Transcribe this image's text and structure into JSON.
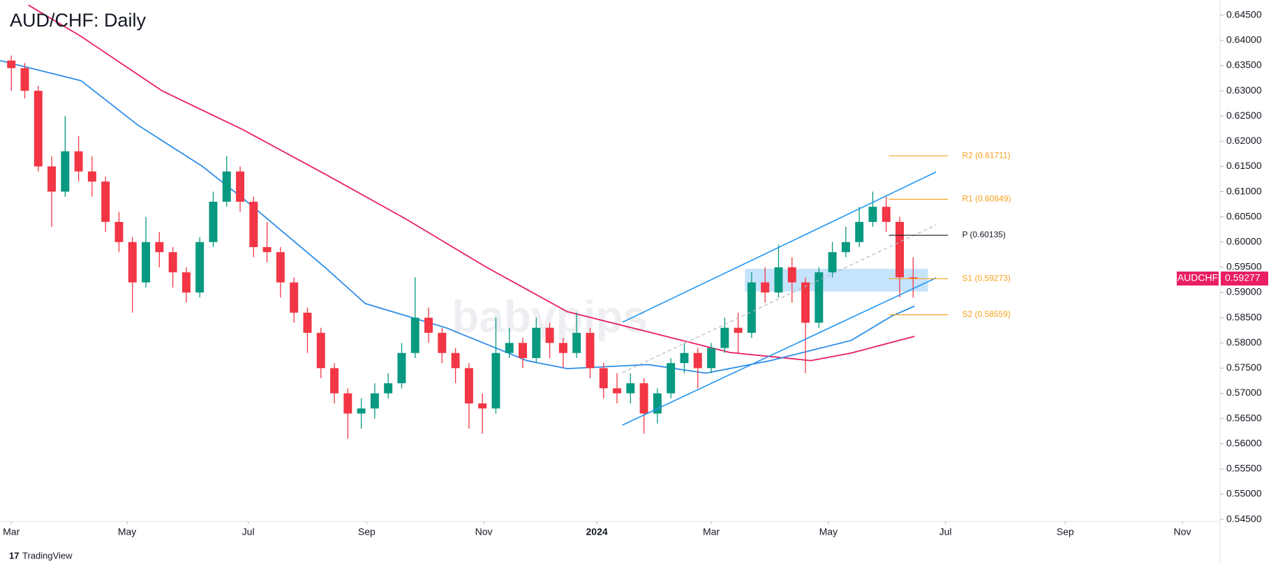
{
  "chart_data": {
    "type": "candlestick",
    "title": "AUD/CHF: Daily",
    "footer": "TradingView",
    "watermark": "babypips",
    "xlim": [
      -0.84,
      89.8
    ],
    "ylim": [
      0.5446,
      0.6469
    ],
    "xticks": [
      {
        "value": 0,
        "label": "Mar"
      },
      {
        "value": 8.6,
        "label": "May"
      },
      {
        "value": 17.6,
        "label": "Jul"
      },
      {
        "value": 26.4,
        "label": "Sep"
      },
      {
        "value": 35.1,
        "label": "Nov"
      },
      {
        "value": 43.5,
        "label": "2024"
      },
      {
        "value": 52,
        "label": "Mar"
      },
      {
        "value": 60.7,
        "label": "May"
      },
      {
        "value": 69.4,
        "label": "Jul"
      },
      {
        "value": 78.3,
        "label": "Sep"
      },
      {
        "value": 87,
        "label": "Nov"
      }
    ],
    "yticks": [
      {
        "value": 0.545,
        "label": "0.54500"
      },
      {
        "value": 0.55,
        "label": "0.55000"
      },
      {
        "value": 0.555,
        "label": "0.55500"
      },
      {
        "value": 0.56,
        "label": "0.56000"
      },
      {
        "value": 0.565,
        "label": "0.56500"
      },
      {
        "value": 0.57,
        "label": "0.57000"
      },
      {
        "value": 0.575,
        "label": "0.57500"
      },
      {
        "value": 0.58,
        "label": "0.58000"
      },
      {
        "value": 0.585,
        "label": "0.58500"
      },
      {
        "value": 0.59,
        "label": "0.59000"
      },
      {
        "value": 0.595,
        "label": "0.59500"
      },
      {
        "value": 0.6,
        "label": "0.60000"
      },
      {
        "value": 0.605,
        "label": "0.60500"
      },
      {
        "value": 0.61,
        "label": "0.61000"
      },
      {
        "value": 0.615,
        "label": "0.61500"
      },
      {
        "value": 0.62,
        "label": "0.62000"
      },
      {
        "value": 0.625,
        "label": "0.62500"
      },
      {
        "value": 0.63,
        "label": "0.63000"
      },
      {
        "value": 0.635,
        "label": "0.63500"
      },
      {
        "value": 0.64,
        "label": "0.64000"
      },
      {
        "value": 0.645,
        "label": "0.64500"
      }
    ],
    "up_color": "#089981",
    "down_color": "#f23645",
    "open": [
      0.636,
      0.6345,
      0.63,
      0.615,
      0.61,
      0.618,
      0.614,
      0.612,
      0.604,
      0.6,
      0.592,
      0.6,
      0.598,
      0.594,
      0.59,
      0.6,
      0.608,
      0.614,
      0.608,
      0.599,
      0.598,
      0.592,
      0.586,
      0.582,
      0.575,
      0.57,
      0.566,
      0.567,
      0.57,
      0.572,
      0.578,
      0.585,
      0.582,
      0.578,
      0.575,
      0.568,
      0.567,
      0.578,
      0.58,
      0.577,
      0.583,
      0.58,
      0.578,
      0.582,
      0.575,
      0.571,
      0.57,
      0.572,
      0.566,
      0.57,
      0.576,
      0.578,
      0.575,
      0.579,
      0.583,
      0.582,
      0.592,
      0.59,
      0.595,
      0.592,
      0.584,
      0.594,
      0.598,
      0.6,
      0.604,
      0.607,
      0.604,
      0.593
    ],
    "high": [
      0.637,
      0.6355,
      0.631,
      0.617,
      0.625,
      0.621,
      0.617,
      0.613,
      0.606,
      0.601,
      0.605,
      0.602,
      0.599,
      0.595,
      0.601,
      0.61,
      0.617,
      0.615,
      0.609,
      0.604,
      0.599,
      0.593,
      0.587,
      0.583,
      0.576,
      0.571,
      0.569,
      0.572,
      0.574,
      0.58,
      0.593,
      0.587,
      0.583,
      0.579,
      0.576,
      0.57,
      0.585,
      0.583,
      0.581,
      0.585,
      0.584,
      0.581,
      0.586,
      0.583,
      0.576,
      0.574,
      0.574,
      0.573,
      0.571,
      0.577,
      0.58,
      0.579,
      0.58,
      0.585,
      0.586,
      0.594,
      0.595,
      0.5995,
      0.597,
      0.593,
      0.595,
      0.6,
      0.603,
      0.607,
      0.61,
      0.609,
      0.605,
      0.597
    ],
    "low": [
      0.63,
      0.6285,
      0.614,
      0.603,
      0.609,
      0.612,
      0.609,
      0.602,
      0.598,
      0.586,
      0.591,
      0.595,
      0.591,
      0.588,
      0.589,
      0.599,
      0.607,
      0.606,
      0.597,
      0.596,
      0.589,
      0.584,
      0.578,
      0.573,
      0.568,
      0.561,
      0.563,
      0.565,
      0.569,
      0.571,
      0.577,
      0.58,
      0.576,
      0.572,
      0.563,
      0.562,
      0.566,
      0.577,
      0.575,
      0.576,
      0.577,
      0.575,
      0.577,
      0.573,
      0.569,
      0.568,
      0.568,
      0.562,
      0.564,
      0.569,
      0.574,
      0.571,
      0.574,
      0.578,
      0.578,
      0.581,
      0.588,
      0.589,
      0.588,
      0.574,
      0.583,
      0.593,
      0.597,
      0.599,
      0.603,
      0.602,
      0.589,
      0.589
    ],
    "close": [
      0.6345,
      0.63,
      0.615,
      0.61,
      0.618,
      0.614,
      0.612,
      0.604,
      0.6,
      0.592,
      0.6,
      0.598,
      0.594,
      0.59,
      0.6,
      0.608,
      0.614,
      0.608,
      0.599,
      0.598,
      0.592,
      0.586,
      0.582,
      0.575,
      0.57,
      0.566,
      0.567,
      0.57,
      0.572,
      0.578,
      0.585,
      0.582,
      0.578,
      0.575,
      0.568,
      0.567,
      0.578,
      0.58,
      0.577,
      0.583,
      0.58,
      0.578,
      0.582,
      0.575,
      0.571,
      0.57,
      0.572,
      0.566,
      0.57,
      0.576,
      0.578,
      0.575,
      0.579,
      0.583,
      0.582,
      0.592,
      0.59,
      0.595,
      0.592,
      0.584,
      0.594,
      0.598,
      0.6,
      0.604,
      0.607,
      0.604,
      0.593,
      0.5928
    ],
    "lines": [
      {
        "color": "#e91e63",
        "x": [
          1.27,
          5.18,
          11.2,
          17.2,
          23.3,
          29.3,
          35.3,
          41.3,
          47.3,
          53.4,
          59.4,
          62.4,
          67.1
        ],
        "values": [
          0.647,
          0.6408,
          0.63,
          0.6223,
          0.6135,
          0.6046,
          0.595,
          0.5862,
          0.5822,
          0.5781,
          0.5765,
          0.578,
          0.5813
        ]
      },
      {
        "color": "#2d8ee9",
        "x": [
          -0.84,
          5.18,
          9.4,
          14.2,
          17.2,
          23.3,
          26.3,
          32.3,
          38.3,
          41.3,
          47.3,
          51.6,
          56.4,
          62.4,
          65.4,
          67.1
        ],
        "values": [
          0.636,
          0.632,
          0.6232,
          0.615,
          0.6087,
          0.595,
          0.5878,
          0.583,
          0.5765,
          0.5749,
          0.5757,
          0.574,
          0.5765,
          0.5805,
          0.5853,
          0.5873
        ]
      }
    ],
    "trendlines": [
      {
        "color": "#2196f3",
        "dash": false,
        "x": [
          45.4,
          68.7
        ],
        "values": [
          0.5841,
          0.6139
        ]
      },
      {
        "color": "#2196f3",
        "dash": false,
        "x": [
          45.4,
          68.7
        ],
        "values": [
          0.5637,
          0.5929
        ]
      },
      {
        "color": "#b2b5be",
        "dash": true,
        "x": [
          45.4,
          68.7
        ],
        "values": [
          0.5741,
          0.6034
        ]
      }
    ],
    "zone": {
      "color": "#bbdefb",
      "x": [
        54.5,
        68.1
      ],
      "values": [
        0.5947,
        0.5902
      ]
    },
    "pivot_x": [
      65.2,
      69.6
    ],
    "pivots": [
      {
        "label": "R2 (0.61711)",
        "value": 0.61711,
        "color": "#f7a21b"
      },
      {
        "label": "R1 (0.60849)",
        "value": 0.60849,
        "color": "#f7a21b"
      },
      {
        "label": "P (0.60135)",
        "value": 0.60135,
        "color": "#131722"
      },
      {
        "label": "S1 (0.59273)",
        "value": 0.59273,
        "color": "#f7a21b"
      },
      {
        "label": "S2 (0.58559)",
        "value": 0.58559,
        "color": "#f7a21b"
      }
    ],
    "symbol": "AUDCHF",
    "last_price": 0.59277,
    "price_tag_color": "#e91e63"
  }
}
